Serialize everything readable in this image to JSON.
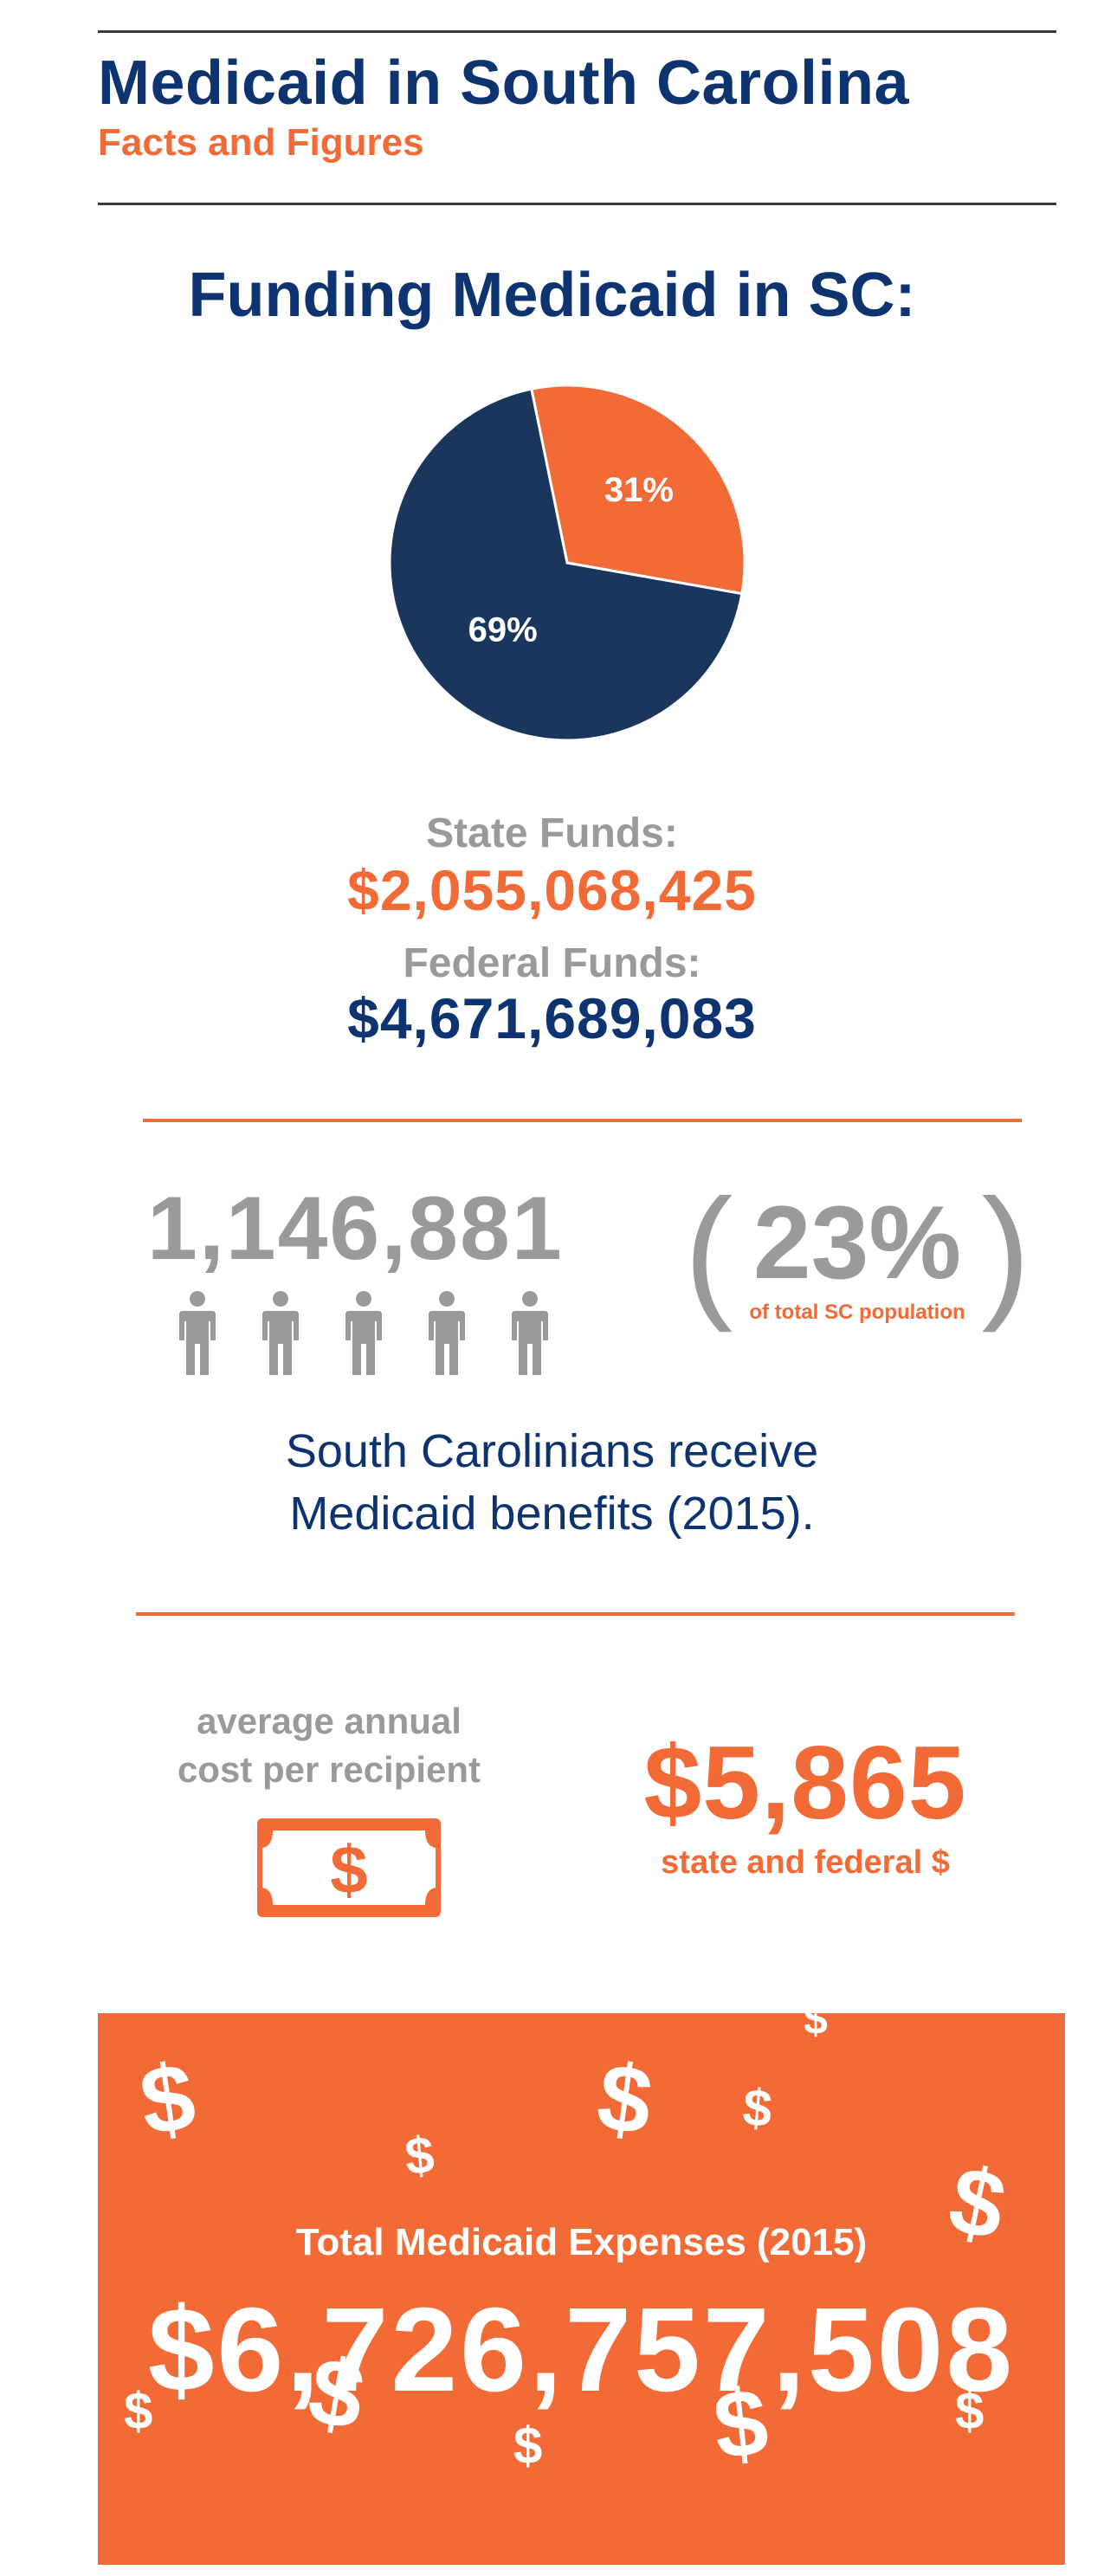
{
  "header": {
    "title": "Medicaid in South Carolina",
    "subtitle": "Facts and Figures"
  },
  "funding": {
    "heading": "Funding Medicaid in SC:",
    "state_label": "State Funds:",
    "state_value": "$2,055,068,425",
    "federal_label": "Federal Funds:",
    "federal_value": "$4,671,689,083"
  },
  "chart_data": {
    "type": "pie",
    "slices": [
      {
        "value": 31,
        "label": "31%",
        "color": "#f26a36"
      },
      {
        "value": 69,
        "label": "69%",
        "color": "#1b365d"
      }
    ]
  },
  "recipients": {
    "count": "1,146,881",
    "percent": "23%",
    "percent_left_paren": "(",
    "percent_right_paren": ")",
    "percent_caption": "of total SC population",
    "description_line1": "South Carolinians receive",
    "description_line2": "Medicaid benefits (2015).",
    "people_icon_count": 5
  },
  "cost": {
    "label_line1": "average annual",
    "label_line2": "cost per recipient",
    "value": "$5,865",
    "caption": "state and federal $",
    "bill_symbol": "$"
  },
  "total": {
    "label": "Total Medicaid Expenses (2015)",
    "value": "$6,726,757,508",
    "decor_symbol": "$"
  },
  "colors": {
    "navy": "#0d3470",
    "orange": "#f26a36",
    "gray": "#9a9a9a",
    "pie_navy": "#1b365d"
  }
}
